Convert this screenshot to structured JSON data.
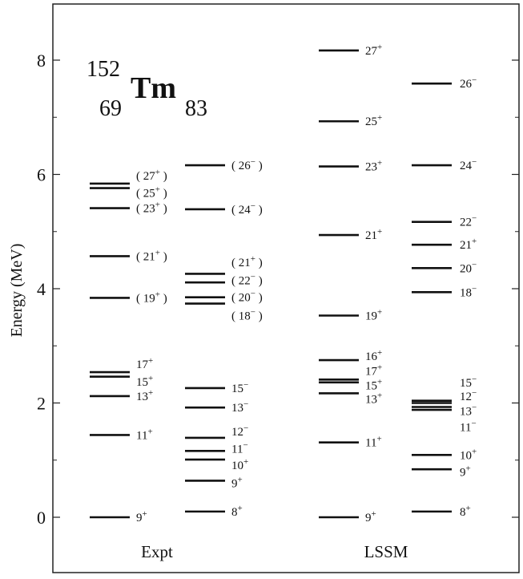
{
  "chart_data": {
    "type": "level-scheme",
    "nucleus": {
      "mass": "152",
      "z": "69",
      "symbol": "Tm",
      "n": "83"
    },
    "ylabel": "Energy (MeV)",
    "ylim": [
      -0.95,
      9.0
    ],
    "yticks": [
      0,
      2,
      4,
      6,
      8
    ],
    "columns": [
      {
        "name": "Expt",
        "groups": [
          {
            "parity": "+",
            "levels": [
              {
                "spin": "9",
                "parity": "+",
                "energy": 0.0,
                "label_energy": 0.0,
                "tentative": false
              },
              {
                "spin": "11",
                "parity": "+",
                "energy": 1.44,
                "label_energy": 1.44,
                "tentative": false
              },
              {
                "spin": "13",
                "parity": "+",
                "energy": 2.12,
                "label_energy": 2.12,
                "tentative": false
              },
              {
                "spin": "15",
                "parity": "+",
                "energy": 2.46,
                "label_energy": 2.37,
                "tentative": false
              },
              {
                "spin": "17",
                "parity": "+",
                "energy": 2.54,
                "label_energy": 2.68,
                "tentative": false
              },
              {
                "spin": "19",
                "parity": "+",
                "energy": 3.84,
                "label_energy": 3.84,
                "tentative": true
              },
              {
                "spin": "21",
                "parity": "+",
                "energy": 4.57,
                "label_energy": 4.57,
                "tentative": true
              },
              {
                "spin": "23",
                "parity": "+",
                "energy": 5.41,
                "label_energy": 5.41,
                "tentative": true
              },
              {
                "spin": "25",
                "parity": "+",
                "energy": 5.76,
                "label_energy": 5.68,
                "tentative": true
              },
              {
                "spin": "27",
                "parity": "+",
                "energy": 5.84,
                "label_energy": 5.98,
                "tentative": true
              }
            ]
          },
          {
            "parity": "-",
            "levels": [
              {
                "spin": "8",
                "parity": "+",
                "energy": 0.1,
                "label_energy": 0.1,
                "tentative": false
              },
              {
                "spin": "9",
                "parity": "+",
                "energy": 0.64,
                "label_energy": 0.6,
                "tentative": false
              },
              {
                "spin": "10",
                "parity": "+",
                "energy": 1.01,
                "label_energy": 0.91,
                "tentative": false
              },
              {
                "spin": "11",
                "parity": "−",
                "energy": 1.16,
                "label_energy": 1.2,
                "tentative": false
              },
              {
                "spin": "12",
                "parity": "−",
                "energy": 1.39,
                "label_energy": 1.5,
                "tentative": false
              },
              {
                "spin": "13",
                "parity": "−",
                "energy": 1.92,
                "label_energy": 1.92,
                "tentative": false
              },
              {
                "spin": "15",
                "parity": "−",
                "energy": 2.26,
                "label_energy": 2.26,
                "tentative": false
              },
              {
                "spin": "18",
                "parity": "−",
                "energy": 3.74,
                "label_energy": 3.53,
                "tentative": true
              },
              {
                "spin": "20",
                "parity": "−",
                "energy": 3.85,
                "label_energy": 3.85,
                "tentative": true
              },
              {
                "spin": "22",
                "parity": "−",
                "energy": 4.11,
                "label_energy": 4.15,
                "tentative": true
              },
              {
                "spin": "21",
                "parity": "+",
                "energy": 4.26,
                "label_energy": 4.46,
                "tentative": true
              },
              {
                "spin": "24",
                "parity": "−",
                "energy": 5.39,
                "label_energy": 5.39,
                "tentative": true
              },
              {
                "spin": "26",
                "parity": "−",
                "energy": 6.16,
                "label_energy": 6.16,
                "tentative": true
              }
            ]
          }
        ]
      },
      {
        "name": "LSSM",
        "groups": [
          {
            "parity": "+",
            "levels": [
              {
                "spin": "9",
                "parity": "+",
                "energy": 0.0,
                "label_energy": 0.0,
                "tentative": false
              },
              {
                "spin": "11",
                "parity": "+",
                "energy": 1.31,
                "label_energy": 1.31,
                "tentative": false
              },
              {
                "spin": "13",
                "parity": "+",
                "energy": 2.17,
                "label_energy": 2.07,
                "tentative": false
              },
              {
                "spin": "15",
                "parity": "+",
                "energy": 2.36,
                "label_energy": 2.31,
                "tentative": false
              },
              {
                "spin": "17",
                "parity": "+",
                "energy": 2.41,
                "label_energy": 2.56,
                "tentative": false
              },
              {
                "spin": "16",
                "parity": "+",
                "energy": 2.75,
                "label_energy": 2.82,
                "tentative": false
              },
              {
                "spin": "19",
                "parity": "+",
                "energy": 3.53,
                "label_energy": 3.53,
                "tentative": false
              },
              {
                "spin": "21",
                "parity": "+",
                "energy": 4.94,
                "label_energy": 4.94,
                "tentative": false
              },
              {
                "spin": "23",
                "parity": "+",
                "energy": 6.14,
                "label_energy": 6.14,
                "tentative": false
              },
              {
                "spin": "25",
                "parity": "+",
                "energy": 6.93,
                "label_energy": 6.93,
                "tentative": false
              },
              {
                "spin": "27",
                "parity": "+",
                "energy": 8.17,
                "label_energy": 8.17,
                "tentative": false
              }
            ]
          },
          {
            "parity": "-",
            "levels": [
              {
                "spin": "8",
                "parity": "+",
                "energy": 0.1,
                "label_energy": 0.1,
                "tentative": false
              },
              {
                "spin": "9",
                "parity": "+",
                "energy": 0.84,
                "label_energy": 0.79,
                "tentative": false
              },
              {
                "spin": "10",
                "parity": "+",
                "energy": 1.09,
                "label_energy": 1.09,
                "tentative": false
              },
              {
                "spin": "11",
                "parity": "−",
                "energy": 1.88,
                "label_energy": 1.58,
                "tentative": false
              },
              {
                "spin": "13",
                "parity": "−",
                "energy": 1.93,
                "label_energy": 1.86,
                "tentative": false
              },
              {
                "spin": "12",
                "parity": "−",
                "energy": 2.0,
                "label_energy": 2.12,
                "tentative": false
              },
              {
                "spin": "15",
                "parity": "−",
                "energy": 2.04,
                "label_energy": 2.36,
                "tentative": false
              },
              {
                "spin": "18",
                "parity": "−",
                "energy": 3.94,
                "label_energy": 3.94,
                "tentative": false
              },
              {
                "spin": "20",
                "parity": "−",
                "energy": 4.36,
                "label_energy": 4.36,
                "tentative": false
              },
              {
                "spin": "21",
                "parity": "+",
                "energy": 4.77,
                "label_energy": 4.77,
                "tentative": false
              },
              {
                "spin": "22",
                "parity": "−",
                "energy": 5.17,
                "label_energy": 5.17,
                "tentative": false
              },
              {
                "spin": "24",
                "parity": "−",
                "energy": 6.16,
                "label_energy": 6.16,
                "tentative": false
              },
              {
                "spin": "26",
                "parity": "−",
                "energy": 7.59,
                "label_energy": 7.59,
                "tentative": false
              }
            ]
          }
        ]
      }
    ],
    "grid": false,
    "colors": {
      "line": "#111111",
      "frame": "#222222",
      "background": "#ffffff"
    }
  }
}
